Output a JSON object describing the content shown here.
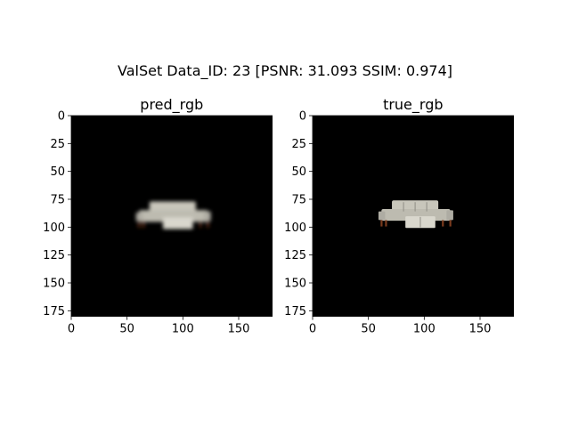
{
  "figure": {
    "suptitle": "ValSet  Data_ID: 23 [PSNR: 31.093 SSIM: 0.974]",
    "background": "#ffffff"
  },
  "chart_data": [
    {
      "type": "heatmap",
      "title": "pred_rgb",
      "xlabel": "",
      "ylabel": "",
      "image_extent": [
        0,
        180
      ],
      "xlim": [
        0,
        180
      ],
      "ylim": [
        180,
        0
      ],
      "x_ticks": [
        0,
        50,
        100,
        150
      ],
      "y_ticks": [
        0,
        25,
        50,
        75,
        100,
        125,
        150,
        175
      ],
      "image_background": "#000000",
      "object": "sofa-blurred",
      "object_bounds": {
        "x": [
          58,
          125
        ],
        "y": [
          77,
          103
        ]
      },
      "object_color": "#c9c6bb",
      "grid": false
    },
    {
      "type": "heatmap",
      "title": "true_rgb",
      "xlabel": "",
      "ylabel": "",
      "image_extent": [
        0,
        180
      ],
      "xlim": [
        0,
        180
      ],
      "ylim": [
        180,
        0
      ],
      "x_ticks": [
        0,
        50,
        100,
        150
      ],
      "y_ticks": [
        0,
        25,
        50,
        75,
        100,
        125,
        150,
        175
      ],
      "image_background": "#000000",
      "object": "sofa",
      "object_bounds": {
        "x": [
          59,
          126
        ],
        "y": [
          76,
          102
        ]
      },
      "object_color": "#c8c6bb",
      "grid": false
    }
  ]
}
